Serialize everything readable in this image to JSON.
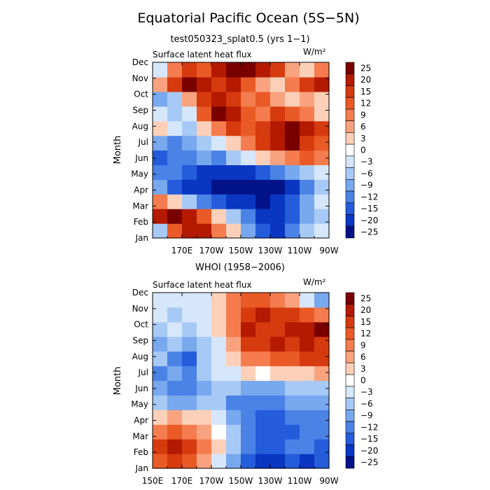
{
  "title": "Equatorial Pacific Ocean (5S−5N)",
  "chart_data": [
    {
      "type": "heatmap",
      "title": "test050323_splat0.5 (yrs 1−1)",
      "subtitle": "Surface latent heat flux",
      "units": "W/m²",
      "ylabel": "Month",
      "x_ticks": [
        "170E",
        "170W",
        "150W",
        "130W",
        "110W",
        "90W"
      ],
      "y_ticks": [
        "Jan",
        "Feb",
        "Mar",
        "Apr",
        "May",
        "Jun",
        "Jul",
        "Aug",
        "Sep",
        "Oct",
        "Nov",
        "Dec"
      ],
      "xlim": [
        150,
        270
      ],
      "colorbar_levels": [
        "25",
        "20",
        "15",
        "12",
        "9",
        "6",
        "3",
        "0",
        "−3",
        "−6",
        "−9",
        "−12",
        "−15",
        "−20",
        "−25"
      ],
      "grid": [
        [
          -6,
          12,
          22,
          18,
          9,
          3,
          -9,
          -15,
          -20,
          -12,
          -6,
          -3
        ],
        [
          18,
          25,
          20,
          12,
          3,
          -6,
          -12,
          -18,
          -20,
          -15,
          -9,
          -6
        ],
        [
          9,
          3,
          -6,
          -12,
          -15,
          -20,
          -22,
          -25,
          -22,
          -15,
          -9,
          -3
        ],
        [
          -9,
          -15,
          -18,
          -20,
          -25,
          -25,
          -25,
          -25,
          -25,
          -20,
          -12,
          -6
        ],
        [
          -12,
          -12,
          -15,
          -18,
          -20,
          -22,
          -20,
          -15,
          -12,
          -9,
          -6,
          -3
        ],
        [
          -15,
          -12,
          -12,
          -9,
          -12,
          -6,
          -3,
          3,
          6,
          9,
          12,
          9
        ],
        [
          -9,
          -12,
          -9,
          -6,
          -3,
          3,
          9,
          15,
          20,
          25,
          15,
          12
        ],
        [
          3,
          -3,
          -6,
          3,
          9,
          15,
          12,
          15,
          20,
          25,
          20,
          15
        ],
        [
          -3,
          -6,
          -3,
          12,
          25,
          20,
          12,
          9,
          15,
          12,
          9,
          3
        ],
        [
          -9,
          -6,
          6,
          15,
          20,
          15,
          9,
          12,
          6,
          3,
          6,
          3
        ],
        [
          6,
          15,
          25,
          20,
          15,
          20,
          12,
          6,
          3,
          9,
          15,
          20
        ],
        [
          -3,
          9,
          15,
          12,
          20,
          25,
          25,
          20,
          15,
          6,
          3,
          9
        ]
      ]
    },
    {
      "type": "heatmap",
      "title": "WHOI (1958−2006)",
      "subtitle": "Surface latent heat flux",
      "units": "W/m²",
      "ylabel": "Month",
      "x_ticks": [
        "150E",
        "170E",
        "170W",
        "150W",
        "130W",
        "110W",
        "90W"
      ],
      "y_ticks": [
        "Jan",
        "Feb",
        "Mar",
        "Apr",
        "May",
        "Jun",
        "Jul",
        "Aug",
        "Sep",
        "Oct",
        "Nov",
        "Dec"
      ],
      "xlim": [
        150,
        270
      ],
      "colorbar_levels": [
        "25",
        "20",
        "15",
        "12",
        "9",
        "6",
        "3",
        "0",
        "−3",
        "−6",
        "−9",
        "−12",
        "−15",
        "−20",
        "−25"
      ],
      "grid": [
        [
          12,
          15,
          12,
          6,
          -3,
          -9,
          -15,
          -20,
          -20,
          -15,
          -20,
          -15
        ],
        [
          15,
          20,
          15,
          9,
          3,
          -6,
          -12,
          -15,
          -15,
          -12,
          -12,
          -15
        ],
        [
          9,
          12,
          9,
          6,
          0,
          -6,
          -12,
          -15,
          -15,
          -15,
          -12,
          -12
        ],
        [
          3,
          6,
          3,
          3,
          -3,
          -9,
          -12,
          -15,
          -15,
          -12,
          -12,
          -12
        ],
        [
          -6,
          -9,
          -9,
          -6,
          -6,
          -12,
          -12,
          -12,
          -12,
          -9,
          -9,
          -9
        ],
        [
          -9,
          -12,
          -12,
          -9,
          -6,
          -6,
          -9,
          -9,
          -9,
          -6,
          -6,
          -6
        ],
        [
          -12,
          -9,
          -12,
          -6,
          -3,
          -3,
          3,
          0,
          3,
          3,
          3,
          6
        ],
        [
          -6,
          -12,
          -15,
          -6,
          -3,
          3,
          9,
          9,
          12,
          12,
          15,
          15
        ],
        [
          -9,
          -6,
          -9,
          -6,
          -3,
          6,
          15,
          15,
          20,
          15,
          20,
          15
        ],
        [
          -6,
          -3,
          -6,
          -3,
          3,
          9,
          20,
          15,
          15,
          20,
          20,
          25
        ],
        [
          -3,
          -6,
          -3,
          -3,
          3,
          9,
          15,
          20,
          15,
          15,
          12,
          9
        ],
        [
          -3,
          -3,
          -3,
          -3,
          3,
          9,
          12,
          12,
          9,
          6,
          -3,
          -9
        ]
      ]
    }
  ],
  "colors": {
    "25": "#7a0000",
    "20": "#b31a00",
    "15": "#d63a0f",
    "12": "#ea5a26",
    "9": "#f47c4e",
    "6": "#f9a27f",
    "3": "#fcd0b8",
    "0": "#ffffff",
    "-3": "#d6e6fb",
    "-6": "#a7c9f5",
    "-9": "#78a8ee",
    "-12": "#4b82e6",
    "-15": "#245cdb",
    "-20": "#0a36c2",
    "-25": "#02138a"
  }
}
